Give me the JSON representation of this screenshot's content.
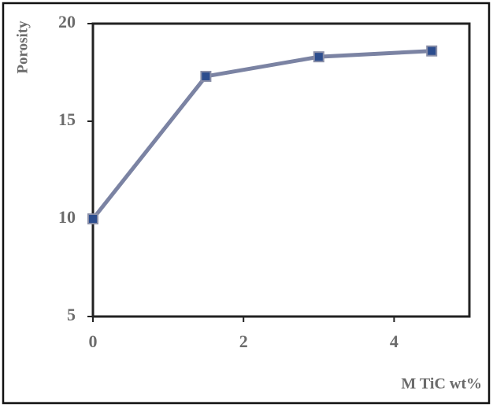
{
  "chart_data": {
    "type": "line",
    "x_label": "M TiC wt%",
    "y_label": "Porosity",
    "x": [
      0,
      1.5,
      3,
      4.5
    ],
    "values": [
      10,
      17.3,
      18.3,
      18.6
    ],
    "color": "#7b83a3",
    "marker_color": "#2c4d8e",
    "xlim": [
      0,
      5
    ],
    "ylim": [
      5,
      20
    ],
    "xticks": [
      0,
      2,
      4
    ],
    "yticks": [
      5,
      10,
      15,
      20
    ]
  }
}
